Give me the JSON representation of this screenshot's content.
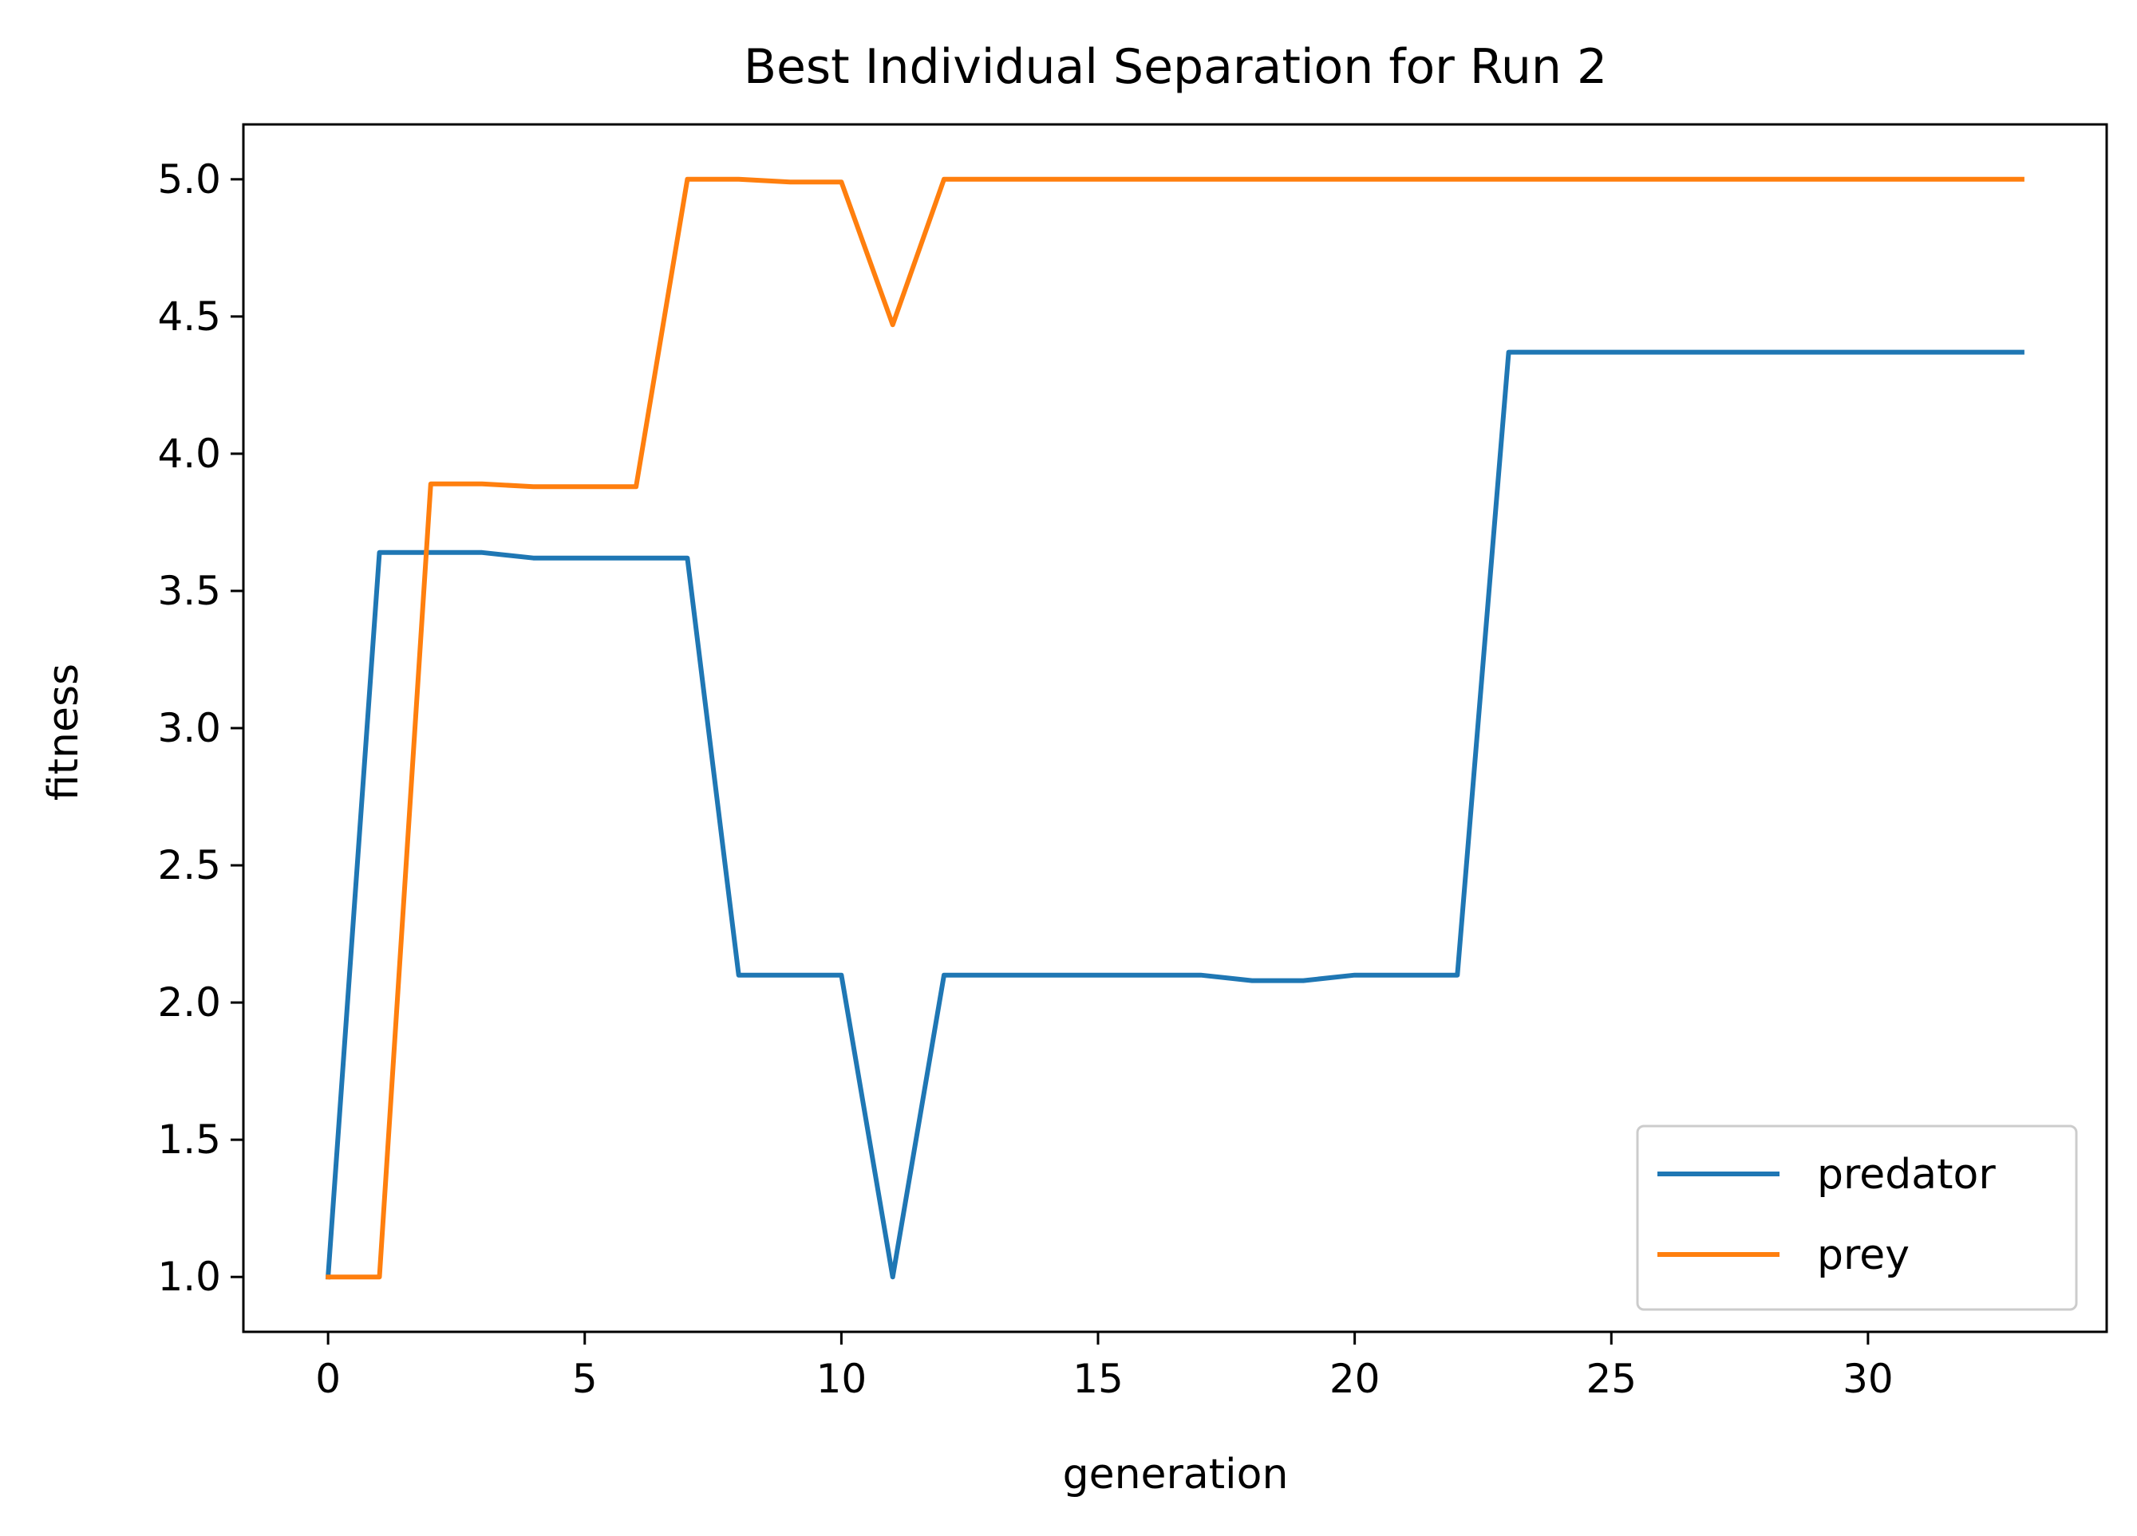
{
  "chart_data": {
    "type": "line",
    "title": "Best Individual Separation for Run 2",
    "xlabel": "generation",
    "ylabel": "fitness",
    "xlim": [
      -1.65,
      34.65
    ],
    "ylim": [
      0.8,
      5.2
    ],
    "xticks": [
      0,
      5,
      10,
      15,
      20,
      25,
      30
    ],
    "yticks": [
      "1.0",
      "1.5",
      "2.0",
      "2.5",
      "3.0",
      "3.5",
      "4.0",
      "4.5",
      "5.0"
    ],
    "grid": false,
    "legend_position": "lower-right",
    "x": [
      0,
      1,
      2,
      3,
      4,
      5,
      6,
      7,
      8,
      9,
      10,
      11,
      12,
      13,
      14,
      15,
      16,
      17,
      18,
      19,
      20,
      21,
      22,
      23,
      24,
      25,
      26,
      27,
      28,
      29,
      30,
      31,
      32,
      33
    ],
    "series": [
      {
        "name": "predator",
        "color": "#1f77b4",
        "values": [
          1.0,
          3.64,
          3.64,
          3.64,
          3.62,
          3.62,
          3.62,
          3.62,
          2.1,
          2.1,
          2.1,
          1.0,
          2.1,
          2.1,
          2.1,
          2.1,
          2.1,
          2.1,
          2.08,
          2.08,
          2.1,
          2.1,
          2.1,
          4.37,
          4.37,
          4.37,
          4.37,
          4.37,
          4.37,
          4.37,
          4.37,
          4.37,
          4.37,
          4.37
        ]
      },
      {
        "name": "prey",
        "color": "#ff7f0e",
        "values": [
          1.0,
          1.0,
          3.89,
          3.89,
          3.88,
          3.88,
          3.88,
          5.0,
          5.0,
          4.99,
          4.99,
          4.47,
          5.0,
          5.0,
          5.0,
          5.0,
          5.0,
          5.0,
          5.0,
          5.0,
          5.0,
          5.0,
          5.0,
          5.0,
          5.0,
          5.0,
          5.0,
          5.0,
          5.0,
          5.0,
          5.0,
          5.0,
          5.0,
          5.0
        ]
      }
    ]
  }
}
